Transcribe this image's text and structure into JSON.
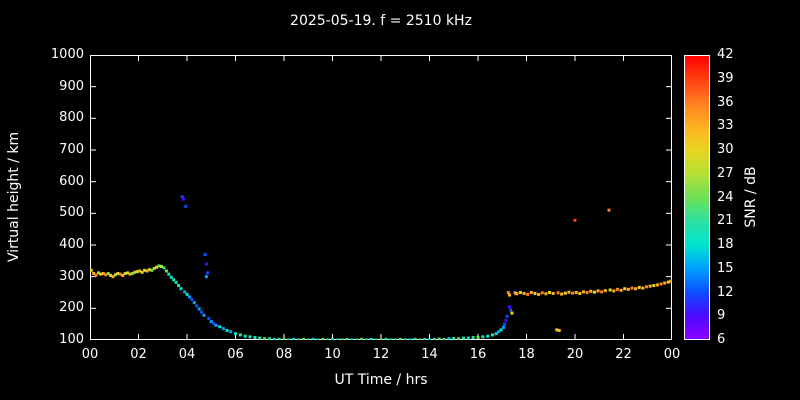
{
  "chart_data": {
    "type": "scatter",
    "title": "2025-05-19. f = 2510 kHz",
    "xlabel": "UT Time / hrs",
    "ylabel": "Virtual height / km",
    "colorbar_label": "SNR / dB",
    "xlim": [
      0,
      24
    ],
    "ylim": [
      100,
      1000
    ],
    "x_tick_values": [
      0,
      2,
      4,
      6,
      8,
      10,
      12,
      14,
      16,
      18,
      20,
      22,
      24
    ],
    "x_tick_labels": [
      "00",
      "02",
      "04",
      "06",
      "08",
      "10",
      "12",
      "14",
      "16",
      "18",
      "20",
      "22",
      "00"
    ],
    "y_tick_values": [
      100,
      200,
      300,
      400,
      500,
      600,
      700,
      800,
      900,
      1000
    ],
    "colorbar_ticks": [
      6,
      9,
      12,
      15,
      18,
      21,
      24,
      27,
      30,
      33,
      36,
      39,
      42
    ],
    "colorbar_range": [
      6,
      42
    ],
    "background": "#000000",
    "axis_color": "#ffffff",
    "colormap": [
      [
        6,
        "#8b00ff"
      ],
      [
        9,
        "#4b0aff"
      ],
      [
        12,
        "#0a50ff"
      ],
      [
        15,
        "#00a0ff"
      ],
      [
        18,
        "#00e5d0"
      ],
      [
        21,
        "#2de0a0"
      ],
      [
        24,
        "#6ee055"
      ],
      [
        27,
        "#b4e036"
      ],
      [
        30,
        "#e8d520"
      ],
      [
        33,
        "#ffb020"
      ],
      [
        36,
        "#ff8020"
      ],
      [
        39,
        "#ff4010"
      ],
      [
        42,
        "#ff0000"
      ]
    ],
    "points": [
      [
        0.05,
        320,
        30
      ],
      [
        0.15,
        310,
        33
      ],
      [
        0.25,
        305,
        36
      ],
      [
        0.35,
        312,
        27
      ],
      [
        0.45,
        308,
        30
      ],
      [
        0.55,
        310,
        33
      ],
      [
        0.65,
        306,
        36
      ],
      [
        0.75,
        310,
        24
      ],
      [
        0.85,
        304,
        30
      ],
      [
        0.95,
        300,
        33
      ],
      [
        1.05,
        306,
        27
      ],
      [
        1.15,
        310,
        30
      ],
      [
        1.25,
        308,
        36
      ],
      [
        1.35,
        304,
        33
      ],
      [
        1.45,
        310,
        27
      ],
      [
        1.55,
        312,
        30
      ],
      [
        1.65,
        308,
        33
      ],
      [
        1.75,
        310,
        24
      ],
      [
        1.85,
        314,
        30
      ],
      [
        1.95,
        316,
        27
      ],
      [
        2.05,
        318,
        33
      ],
      [
        2.15,
        314,
        30
      ],
      [
        2.25,
        320,
        27
      ],
      [
        2.35,
        318,
        33
      ],
      [
        2.45,
        322,
        30
      ],
      [
        2.55,
        320,
        24
      ],
      [
        2.65,
        326,
        27
      ],
      [
        2.75,
        330,
        30
      ],
      [
        2.85,
        334,
        24
      ],
      [
        2.95,
        332,
        27
      ],
      [
        3.05,
        328,
        21
      ],
      [
        3.15,
        318,
        24
      ],
      [
        3.25,
        308,
        21
      ],
      [
        3.35,
        298,
        18
      ],
      [
        3.45,
        290,
        21
      ],
      [
        3.55,
        282,
        18
      ],
      [
        3.65,
        272,
        21
      ],
      [
        3.75,
        262,
        18
      ],
      [
        3.8,
        552,
        12
      ],
      [
        3.85,
        545,
        9
      ],
      [
        3.95,
        522,
        12
      ],
      [
        3.9,
        252,
        15
      ],
      [
        4.0,
        244,
        18
      ],
      [
        4.1,
        236,
        15
      ],
      [
        4.2,
        228,
        12
      ],
      [
        4.3,
        218,
        15
      ],
      [
        4.4,
        208,
        12
      ],
      [
        4.5,
        198,
        15
      ],
      [
        4.6,
        188,
        12
      ],
      [
        4.7,
        178,
        15
      ],
      [
        4.75,
        370,
        12
      ],
      [
        4.8,
        340,
        9
      ],
      [
        4.85,
        312,
        12
      ],
      [
        4.8,
        300,
        15
      ],
      [
        4.9,
        168,
        12
      ],
      [
        5.0,
        158,
        15
      ],
      [
        5.1,
        152,
        12
      ],
      [
        5.2,
        146,
        15
      ],
      [
        5.35,
        142,
        18
      ],
      [
        5.5,
        136,
        15
      ],
      [
        5.65,
        130,
        18
      ],
      [
        5.8,
        126,
        15
      ],
      [
        6.0,
        120,
        18
      ],
      [
        6.2,
        116,
        21
      ],
      [
        6.4,
        112,
        18
      ],
      [
        6.6,
        110,
        21
      ],
      [
        6.8,
        108,
        18
      ],
      [
        7.0,
        106,
        21
      ],
      [
        7.2,
        104,
        24
      ],
      [
        7.4,
        104,
        21
      ],
      [
        7.6,
        102,
        18
      ],
      [
        7.8,
        102,
        21
      ],
      [
        8.0,
        102,
        24
      ],
      [
        8.2,
        100,
        21
      ],
      [
        8.4,
        102,
        18
      ],
      [
        8.6,
        100,
        21
      ],
      [
        8.8,
        102,
        24
      ],
      [
        9.0,
        100,
        21
      ],
      [
        9.2,
        102,
        18
      ],
      [
        9.4,
        100,
        21
      ],
      [
        9.6,
        102,
        24
      ],
      [
        9.8,
        100,
        21
      ],
      [
        10.0,
        102,
        18
      ],
      [
        10.2,
        100,
        21
      ],
      [
        10.4,
        100,
        24
      ],
      [
        10.6,
        102,
        21
      ],
      [
        10.8,
        100,
        18
      ],
      [
        11.0,
        100,
        21
      ],
      [
        11.2,
        102,
        24
      ],
      [
        11.4,
        100,
        21
      ],
      [
        11.6,
        102,
        18
      ],
      [
        11.8,
        100,
        21
      ],
      [
        12.0,
        100,
        24
      ],
      [
        12.2,
        102,
        21
      ],
      [
        12.4,
        100,
        18
      ],
      [
        12.6,
        100,
        21
      ],
      [
        12.8,
        102,
        24
      ],
      [
        13.0,
        100,
        21
      ],
      [
        13.2,
        100,
        18
      ],
      [
        13.4,
        102,
        21
      ],
      [
        13.6,
        100,
        24
      ],
      [
        13.8,
        102,
        21
      ],
      [
        14.0,
        100,
        18
      ],
      [
        14.2,
        102,
        21
      ],
      [
        14.4,
        103,
        24
      ],
      [
        14.6,
        102,
        21
      ],
      [
        14.8,
        104,
        18
      ],
      [
        15.0,
        105,
        21
      ],
      [
        15.2,
        104,
        24
      ],
      [
        15.4,
        106,
        21
      ],
      [
        15.6,
        106,
        18
      ],
      [
        15.8,
        108,
        21
      ],
      [
        16.0,
        108,
        24
      ],
      [
        16.2,
        110,
        21
      ],
      [
        16.4,
        112,
        18
      ],
      [
        16.6,
        116,
        21
      ],
      [
        16.75,
        120,
        18
      ],
      [
        16.85,
        126,
        15
      ],
      [
        16.95,
        132,
        18
      ],
      [
        17.05,
        140,
        15
      ],
      [
        17.1,
        150,
        12
      ],
      [
        17.15,
        162,
        9
      ],
      [
        17.2,
        175,
        12
      ],
      [
        17.25,
        250,
        36
      ],
      [
        17.3,
        242,
        33
      ],
      [
        17.3,
        205,
        9
      ],
      [
        17.35,
        195,
        12
      ],
      [
        17.4,
        185,
        30
      ],
      [
        17.5,
        250,
        12
      ],
      [
        17.55,
        248,
        33
      ],
      [
        17.6,
        246,
        33
      ],
      [
        17.75,
        250,
        30
      ],
      [
        17.9,
        247,
        33
      ],
      [
        18.05,
        244,
        36
      ],
      [
        18.2,
        250,
        33
      ],
      [
        18.35,
        247,
        30
      ],
      [
        18.5,
        244,
        33
      ],
      [
        18.65,
        249,
        36
      ],
      [
        18.8,
        246,
        33
      ],
      [
        18.95,
        250,
        30
      ],
      [
        19.1,
        247,
        33
      ],
      [
        19.25,
        132,
        30
      ],
      [
        19.35,
        130,
        33
      ],
      [
        19.3,
        249,
        36
      ],
      [
        19.45,
        245,
        33
      ],
      [
        19.6,
        248,
        30
      ],
      [
        19.75,
        251,
        33
      ],
      [
        19.9,
        248,
        36
      ],
      [
        20.0,
        478,
        39
      ],
      [
        20.05,
        250,
        33
      ],
      [
        20.2,
        247,
        30
      ],
      [
        20.35,
        252,
        33
      ],
      [
        20.5,
        250,
        36
      ],
      [
        20.65,
        254,
        33
      ],
      [
        20.8,
        251,
        30
      ],
      [
        20.95,
        255,
        33
      ],
      [
        21.1,
        252,
        36
      ],
      [
        21.25,
        256,
        33
      ],
      [
        21.4,
        510,
        36
      ],
      [
        21.45,
        258,
        30
      ],
      [
        21.6,
        255,
        33
      ],
      [
        21.75,
        260,
        36
      ],
      [
        21.9,
        257,
        33
      ],
      [
        22.05,
        262,
        30
      ],
      [
        22.2,
        260,
        33
      ],
      [
        22.35,
        264,
        36
      ],
      [
        22.5,
        262,
        33
      ],
      [
        22.65,
        266,
        30
      ],
      [
        22.8,
        264,
        33
      ],
      [
        22.95,
        268,
        36
      ],
      [
        23.1,
        270,
        33
      ],
      [
        23.25,
        272,
        30
      ],
      [
        23.4,
        274,
        33
      ],
      [
        23.55,
        277,
        36
      ],
      [
        23.7,
        280,
        33
      ],
      [
        23.85,
        283,
        30
      ],
      [
        23.95,
        286,
        33
      ]
    ]
  }
}
